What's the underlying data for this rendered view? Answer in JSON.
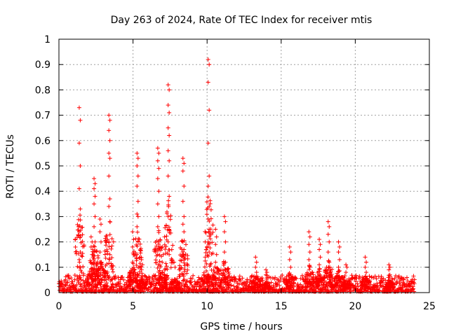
{
  "chart_data": {
    "type": "scatter",
    "title": "Day 263 of 2024, Rate Of TEC Index for receiver mtis",
    "xlabel": "GPS time / hours",
    "ylabel": "ROTI / TECUs",
    "xlim": [
      0,
      25
    ],
    "ylim": [
      0,
      1
    ],
    "grid": true,
    "marker": "+",
    "color": "#ff0000",
    "xticks": [
      0,
      5,
      10,
      15,
      20,
      25
    ],
    "xtick_labels": [
      "0",
      "5",
      "10",
      "15",
      "20",
      "25"
    ],
    "yticks": [
      0,
      0.1,
      0.2,
      0.3,
      0.4,
      0.5,
      0.6,
      0.7,
      0.8,
      0.9,
      1
    ],
    "ytick_labels": [
      "0",
      "0.1",
      "0.2",
      "0.3",
      "0.4",
      "0.5",
      "0.6",
      "0.7",
      "0.8",
      "0.9",
      "1"
    ],
    "background_series": {
      "x_range": [
        0,
        24
      ],
      "y_typical_max": 0.05,
      "note": "dense low-level ROTI values across the whole day"
    },
    "peaks": [
      {
        "x": 1.4,
        "values": [
          0.73,
          0.68,
          0.59,
          0.5,
          0.41,
          0.33,
          0.24,
          0.16,
          0.13,
          0.1
        ]
      },
      {
        "x": 2.2,
        "values": [
          0.22,
          0.2,
          0.18,
          0.15,
          0.12
        ]
      },
      {
        "x": 2.4,
        "values": [
          0.45,
          0.43,
          0.41,
          0.38,
          0.35,
          0.3,
          0.26,
          0.2,
          0.16
        ]
      },
      {
        "x": 2.8,
        "values": [
          0.29,
          0.27,
          0.24,
          0.2,
          0.16,
          0.12
        ]
      },
      {
        "x": 3.4,
        "values": [
          0.7,
          0.68,
          0.64,
          0.6,
          0.55,
          0.53,
          0.46,
          0.37,
          0.34,
          0.28,
          0.2,
          0.15
        ]
      },
      {
        "x": 5.0,
        "values": [
          0.24,
          0.21,
          0.18,
          0.15,
          0.12
        ]
      },
      {
        "x": 5.3,
        "values": [
          0.55,
          0.53,
          0.5,
          0.46,
          0.42,
          0.36,
          0.31,
          0.3,
          0.26,
          0.2,
          0.15
        ]
      },
      {
        "x": 5.6,
        "values": [
          0.13,
          0.11,
          0.09
        ]
      },
      {
        "x": 6.7,
        "values": [
          0.57,
          0.55,
          0.52,
          0.49,
          0.45,
          0.4,
          0.35,
          0.3,
          0.26,
          0.2,
          0.15
        ]
      },
      {
        "x": 7.0,
        "values": [
          0.18,
          0.15,
          0.12
        ]
      },
      {
        "x": 7.4,
        "values": [
          0.82,
          0.8,
          0.74,
          0.71,
          0.65,
          0.62,
          0.56,
          0.52,
          0.46,
          0.38,
          0.3,
          0.25,
          0.2,
          0.15
        ]
      },
      {
        "x": 7.8,
        "values": [
          0.12,
          0.1
        ]
      },
      {
        "x": 8.4,
        "values": [
          0.53,
          0.51,
          0.48,
          0.42,
          0.36,
          0.3,
          0.27,
          0.24,
          0.2,
          0.17,
          0.14
        ]
      },
      {
        "x": 9.9,
        "values": [
          0.2,
          0.17,
          0.14
        ]
      },
      {
        "x": 10.1,
        "values": [
          0.92,
          0.9,
          0.83,
          0.72,
          0.59,
          0.46,
          0.42,
          0.34,
          0.29,
          0.25,
          0.2,
          0.16
        ]
      },
      {
        "x": 10.6,
        "values": [
          0.25,
          0.22,
          0.19,
          0.15,
          0.12
        ]
      },
      {
        "x": 11.2,
        "values": [
          0.3,
          0.28,
          0.24,
          0.2,
          0.16,
          0.12
        ]
      },
      {
        "x": 13.3,
        "values": [
          0.14,
          0.12,
          0.1,
          0.08
        ]
      },
      {
        "x": 14.0,
        "values": [
          0.09,
          0.08,
          0.07
        ]
      },
      {
        "x": 15.6,
        "values": [
          0.18,
          0.16,
          0.13,
          0.1
        ]
      },
      {
        "x": 16.9,
        "values": [
          0.24,
          0.22,
          0.19,
          0.16,
          0.13,
          0.1
        ]
      },
      {
        "x": 17.6,
        "values": [
          0.21,
          0.19,
          0.17,
          0.14,
          0.11
        ]
      },
      {
        "x": 18.2,
        "values": [
          0.28,
          0.26,
          0.23,
          0.2,
          0.16,
          0.12
        ]
      },
      {
        "x": 18.9,
        "values": [
          0.2,
          0.18,
          0.16,
          0.13,
          0.1
        ]
      },
      {
        "x": 19.4,
        "values": [
          0.11,
          0.1,
          0.08
        ]
      },
      {
        "x": 20.7,
        "values": [
          0.14,
          0.12,
          0.1,
          0.08
        ]
      },
      {
        "x": 22.3,
        "values": [
          0.11,
          0.1,
          0.09,
          0.07
        ]
      }
    ]
  }
}
